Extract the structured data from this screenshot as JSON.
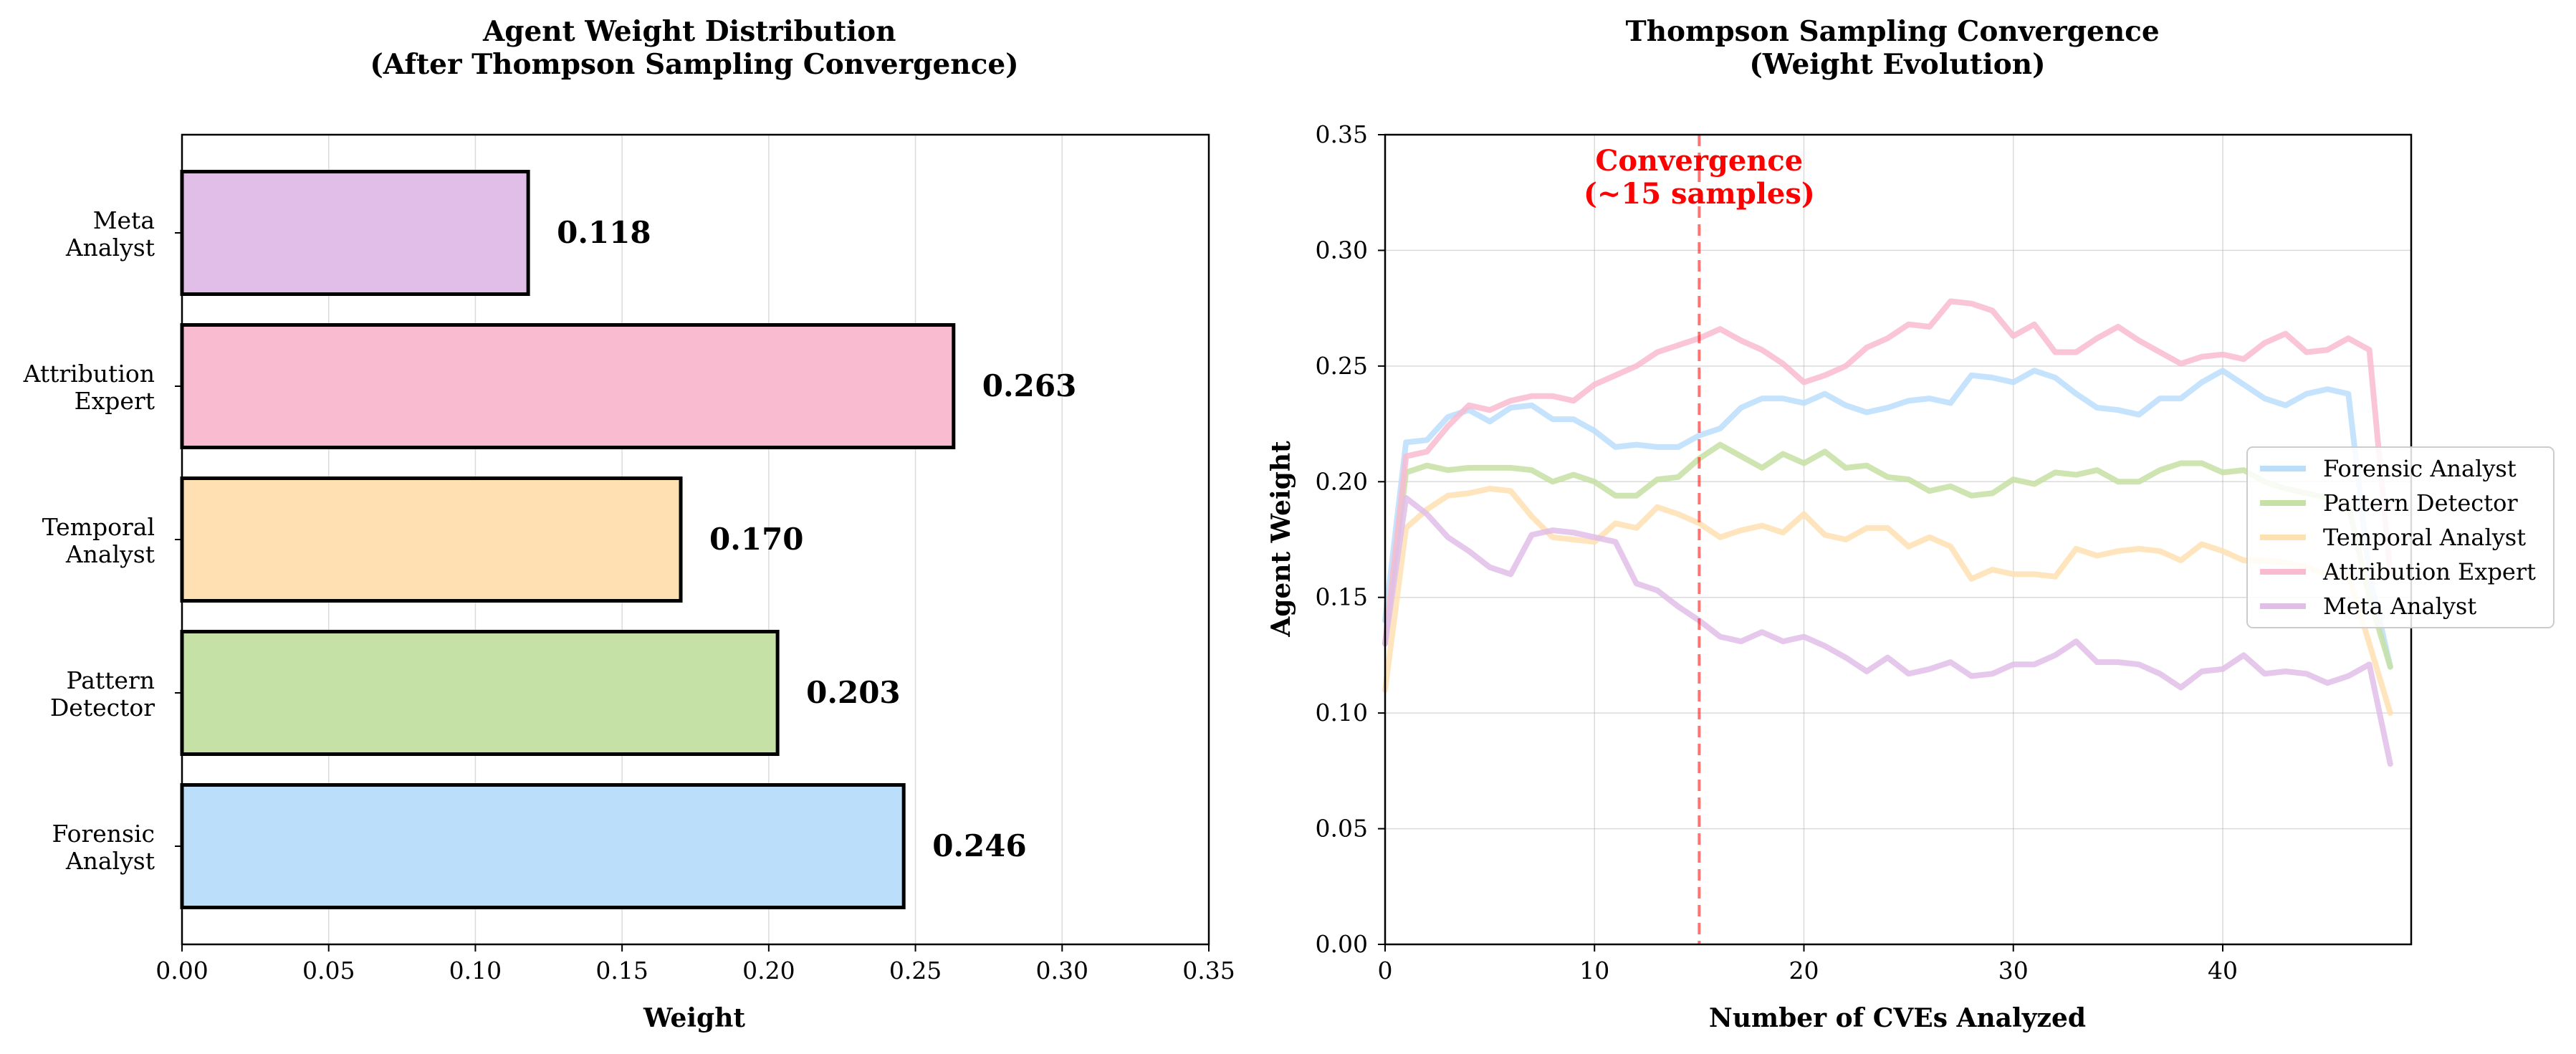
{
  "chart_data": [
    {
      "type": "bar",
      "orientation": "horizontal",
      "title": [
        "Agent Weight Distribution",
        "(After Thompson Sampling Convergence)"
      ],
      "xlabel": "Weight",
      "ylabel": "",
      "xlim": [
        0,
        0.35
      ],
      "xticks": [
        "0.00",
        "0.05",
        "0.10",
        "0.15",
        "0.20",
        "0.25",
        "0.30",
        "0.35"
      ],
      "grid": "x",
      "categories": [
        {
          "lines": [
            "Forensic",
            "Analyst"
          ],
          "value": 0.246,
          "label": "0.246",
          "color": "#bbdefb"
        },
        {
          "lines": [
            "Pattern",
            "Detector"
          ],
          "value": 0.203,
          "label": "0.203",
          "color": "#c5e1a5"
        },
        {
          "lines": [
            "Temporal",
            "Analyst"
          ],
          "value": 0.17,
          "label": "0.170",
          "color": "#ffe0b2"
        },
        {
          "lines": [
            "Attribution",
            "Expert"
          ],
          "value": 0.263,
          "label": "0.263",
          "color": "#f8bbd0"
        },
        {
          "lines": [
            "Meta",
            "Analyst"
          ],
          "value": 0.118,
          "label": "0.118",
          "color": "#e1bee7"
        }
      ]
    },
    {
      "type": "line",
      "title": [
        "Thompson Sampling Convergence",
        "(Weight Evolution)"
      ],
      "xlabel": "Number of CVEs Analyzed",
      "ylabel": "Agent Weight",
      "xlim": [
        0,
        49
      ],
      "ylim": [
        0,
        0.35
      ],
      "xticks": [
        "0",
        "10",
        "20",
        "30",
        "40"
      ],
      "yticks": [
        "0.00",
        "0.05",
        "0.10",
        "0.15",
        "0.20",
        "0.25",
        "0.30",
        "0.35"
      ],
      "grid": "both",
      "legend": "center-right",
      "annotation": {
        "x": 15,
        "lines": [
          "Convergence",
          "(~15 samples)"
        ],
        "color": "#ff0000"
      },
      "series": [
        {
          "name": "Forensic Analyst",
          "color": "#bbdefb",
          "values": [
            0.14,
            0.217,
            0.218,
            0.228,
            0.231,
            0.226,
            0.232,
            0.233,
            0.227,
            0.227,
            0.222,
            0.215,
            0.216,
            0.215,
            0.215,
            0.22,
            0.223,
            0.232,
            0.236,
            0.236,
            0.234,
            0.238,
            0.233,
            0.23,
            0.232,
            0.235,
            0.236,
            0.234,
            0.246,
            0.245,
            0.243,
            0.248,
            0.245,
            0.238,
            0.232,
            0.231,
            0.229,
            0.236,
            0.236,
            0.243,
            0.248,
            0.242,
            0.236,
            0.233,
            0.238,
            0.24,
            0.238,
            0.16,
            0.12
          ]
        },
        {
          "name": "Pattern Detector",
          "color": "#c5e1a5",
          "values": [
            0.13,
            0.204,
            0.207,
            0.205,
            0.206,
            0.206,
            0.206,
            0.205,
            0.2,
            0.203,
            0.2,
            0.194,
            0.194,
            0.201,
            0.202,
            0.21,
            0.216,
            0.211,
            0.206,
            0.212,
            0.208,
            0.213,
            0.206,
            0.207,
            0.202,
            0.201,
            0.196,
            0.198,
            0.194,
            0.195,
            0.201,
            0.199,
            0.204,
            0.203,
            0.205,
            0.2,
            0.2,
            0.205,
            0.208,
            0.208,
            0.204,
            0.205,
            0.2,
            0.197,
            0.195,
            0.193,
            0.19,
            0.15,
            0.12
          ]
        },
        {
          "name": "Temporal Analyst",
          "color": "#ffe0b2",
          "values": [
            0.11,
            0.18,
            0.188,
            0.194,
            0.195,
            0.197,
            0.196,
            0.185,
            0.176,
            0.175,
            0.174,
            0.182,
            0.18,
            0.189,
            0.186,
            0.182,
            0.176,
            0.179,
            0.181,
            0.178,
            0.186,
            0.177,
            0.175,
            0.18,
            0.18,
            0.172,
            0.176,
            0.172,
            0.158,
            0.162,
            0.16,
            0.16,
            0.159,
            0.171,
            0.168,
            0.17,
            0.171,
            0.17,
            0.166,
            0.173,
            0.17,
            0.166,
            0.166,
            0.165,
            0.163,
            0.16,
            0.16,
            0.13,
            0.1
          ]
        },
        {
          "name": "Attribution Expert",
          "color": "#f8bbd0",
          "values": [
            0.13,
            0.211,
            0.213,
            0.224,
            0.233,
            0.231,
            0.235,
            0.237,
            0.237,
            0.235,
            0.242,
            0.246,
            0.25,
            0.256,
            0.259,
            0.262,
            0.266,
            0.261,
            0.257,
            0.251,
            0.243,
            0.246,
            0.25,
            0.258,
            0.262,
            0.268,
            0.267,
            0.278,
            0.277,
            0.274,
            0.263,
            0.268,
            0.256,
            0.256,
            0.262,
            0.267,
            0.261,
            0.256,
            0.251,
            0.254,
            0.255,
            0.253,
            0.26,
            0.264,
            0.256,
            0.257,
            0.262,
            0.257,
            0.16
          ]
        },
        {
          "name": "Meta Analyst",
          "color": "#e1bee7",
          "values": [
            0.13,
            0.193,
            0.186,
            0.176,
            0.17,
            0.163,
            0.16,
            0.177,
            0.179,
            0.178,
            0.176,
            0.174,
            0.156,
            0.153,
            0.146,
            0.14,
            0.133,
            0.131,
            0.135,
            0.131,
            0.133,
            0.129,
            0.124,
            0.118,
            0.124,
            0.117,
            0.119,
            0.122,
            0.116,
            0.117,
            0.121,
            0.121,
            0.125,
            0.131,
            0.122,
            0.122,
            0.121,
            0.117,
            0.111,
            0.118,
            0.119,
            0.125,
            0.117,
            0.118,
            0.117,
            0.113,
            0.116,
            0.121,
            0.078
          ]
        }
      ]
    }
  ]
}
